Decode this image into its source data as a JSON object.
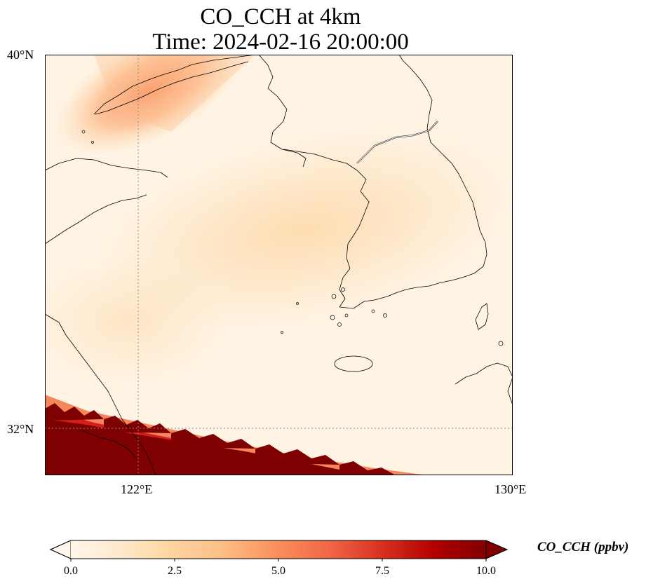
{
  "title": {
    "line1": "CO_CCH at 4km",
    "line2": "Time: 2024-02-16 20:00:00"
  },
  "axes": {
    "lat_ticks": [
      "40°N",
      "32°N"
    ],
    "lon_ticks": [
      "122°E",
      "130°E"
    ]
  },
  "colorbar": {
    "label": "CO_CCH (ppbv)",
    "ticks": [
      "0.0",
      "2.5",
      "5.0",
      "7.5",
      "10.0"
    ],
    "min": 0,
    "max": 10,
    "extend": "both",
    "colormap": [
      "#fff7ec",
      "#fee8c8",
      "#fdd49e",
      "#fdbb84",
      "#fc8d59",
      "#ef6548",
      "#d7301f",
      "#b30000",
      "#7f0000"
    ]
  },
  "map": {
    "extent_lon": [
      120,
      130
    ],
    "extent_lat": [
      31,
      40
    ],
    "gridlines": {
      "lon": 122,
      "lat": 32,
      "style": "dotted"
    },
    "colors": {
      "background": "#fff3e4",
      "plume": "#fdd9ab",
      "high": "#7f0000",
      "coast": "#000000"
    }
  }
}
